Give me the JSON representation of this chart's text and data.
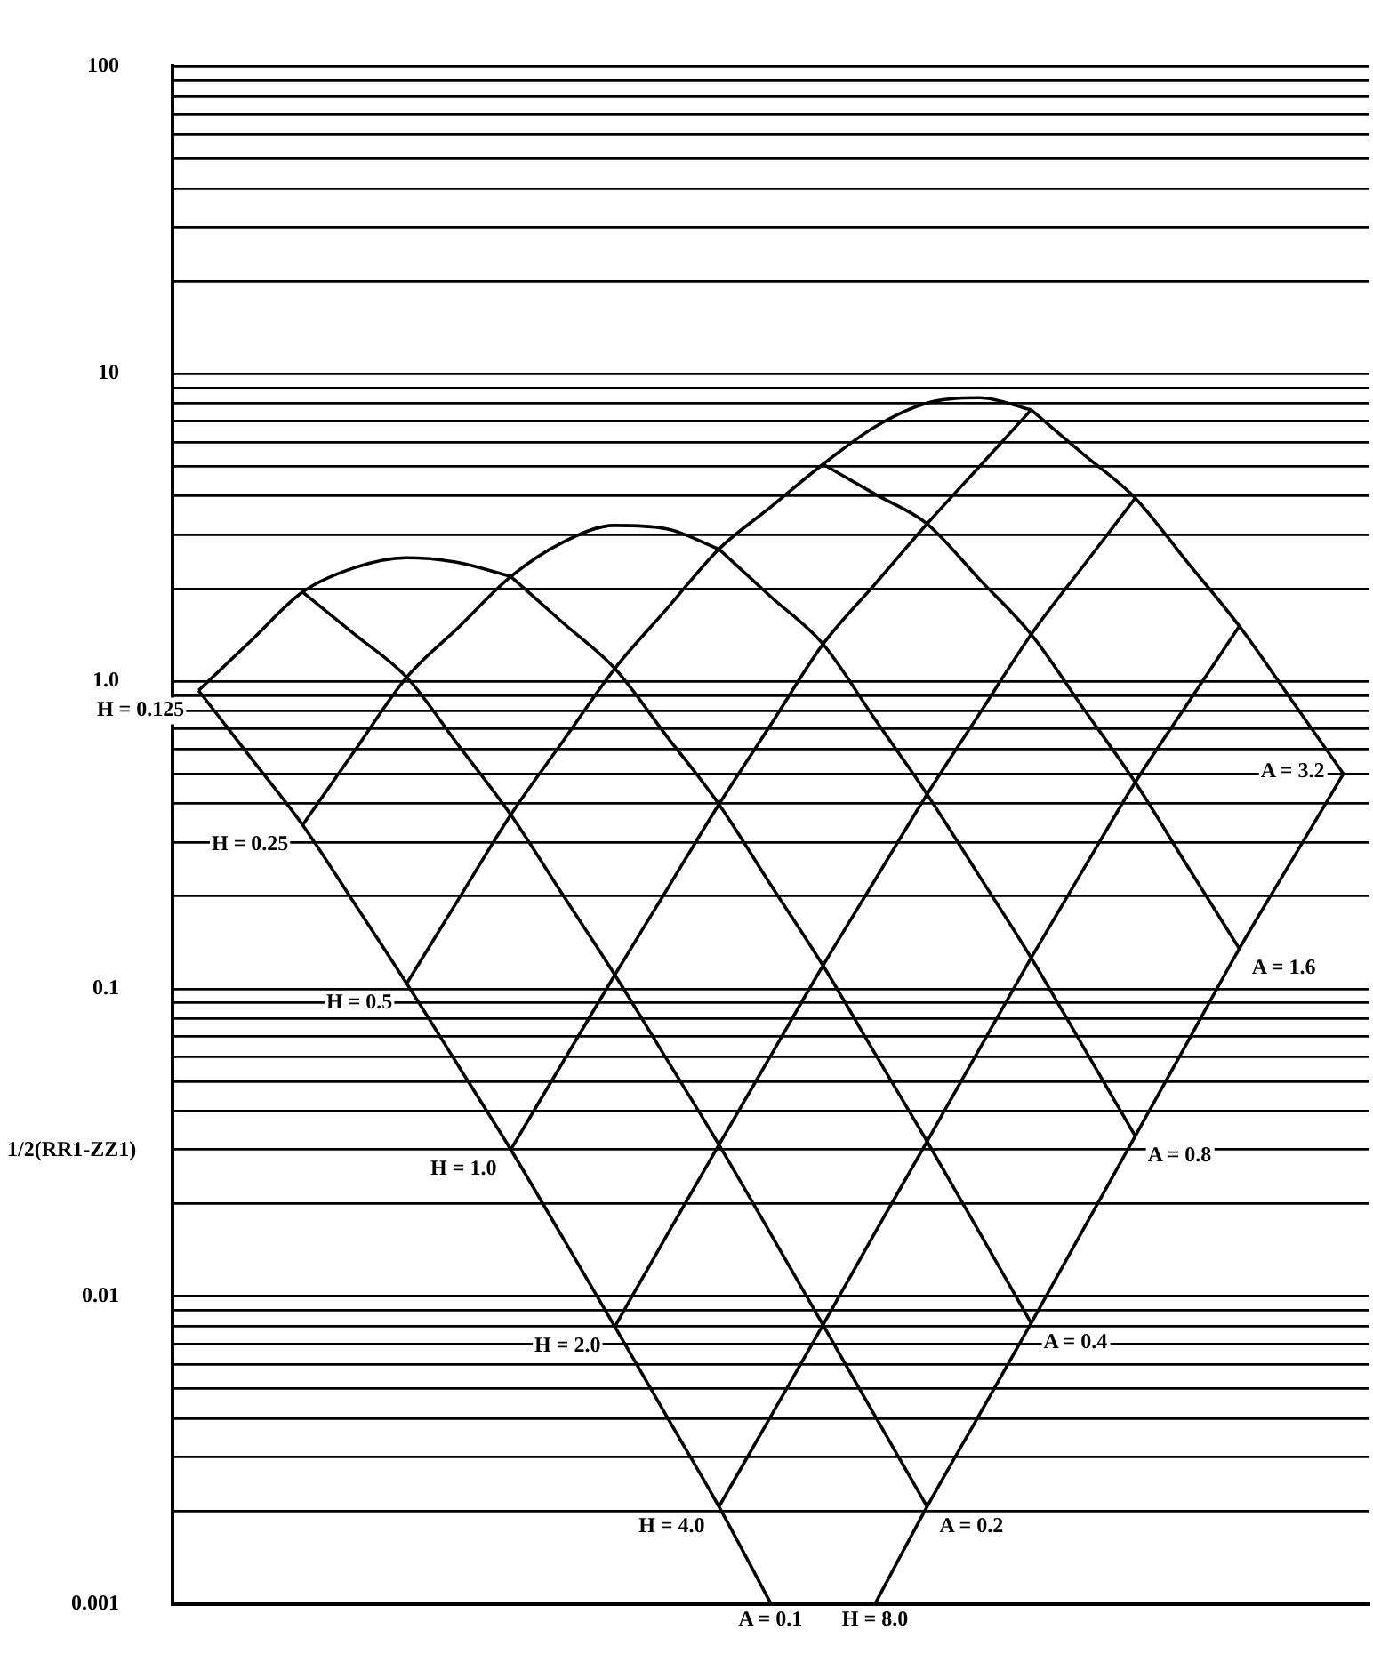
{
  "chart_data": {
    "type": "line",
    "ylabel": "1/2(RR1-ZZ1)",
    "log": "y",
    "ylim": [
      0.001,
      100
    ],
    "yticks": [
      {
        "value": 0.001,
        "label": "0.001"
      },
      {
        "value": 0.002,
        "label": null
      },
      {
        "value": 0.003,
        "label": null
      },
      {
        "value": 0.004,
        "label": null
      },
      {
        "value": 0.005,
        "label": null
      },
      {
        "value": 0.006,
        "label": null
      },
      {
        "value": 0.007,
        "label": null
      },
      {
        "value": 0.008,
        "label": null
      },
      {
        "value": 0.009,
        "label": null
      },
      {
        "value": 0.01,
        "label": "0.01"
      },
      {
        "value": 0.02,
        "label": null
      },
      {
        "value": 0.03,
        "label": null
      },
      {
        "value": 0.04,
        "label": null
      },
      {
        "value": 0.05,
        "label": null
      },
      {
        "value": 0.06,
        "label": null
      },
      {
        "value": 0.07,
        "label": null
      },
      {
        "value": 0.08,
        "label": null
      },
      {
        "value": 0.09,
        "label": null
      },
      {
        "value": 0.1,
        "label": "0.1"
      },
      {
        "value": 0.2,
        "label": null
      },
      {
        "value": 0.3,
        "label": null
      },
      {
        "value": 0.4,
        "label": null
      },
      {
        "value": 0.5,
        "label": null
      },
      {
        "value": 0.6,
        "label": null
      },
      {
        "value": 0.7,
        "label": null
      },
      {
        "value": 0.8,
        "label": null
      },
      {
        "value": 0.9,
        "label": null
      },
      {
        "value": 1,
        "label": "1.0"
      },
      {
        "value": 2,
        "label": null
      },
      {
        "value": 3,
        "label": null
      },
      {
        "value": 4,
        "label": null
      },
      {
        "value": 5,
        "label": null
      },
      {
        "value": 6,
        "label": null
      },
      {
        "value": 7,
        "label": null
      },
      {
        "value": 8,
        "label": null
      },
      {
        "value": 9,
        "label": null
      },
      {
        "value": 10,
        "label": "10"
      },
      {
        "value": 20,
        "label": null
      },
      {
        "value": 30,
        "label": null
      },
      {
        "value": 40,
        "label": null
      },
      {
        "value": 50,
        "label": null
      },
      {
        "value": 60,
        "label": null
      },
      {
        "value": 70,
        "label": null
      },
      {
        "value": 80,
        "label": null
      },
      {
        "value": 90,
        "label": null
      },
      {
        "value": 100,
        "label": "100"
      }
    ],
    "categories": [
      null,
      null,
      null,
      null,
      null,
      null,
      null,
      null,
      null,
      null,
      null,
      null,
      null,
      null,
      null,
      null,
      null,
      null,
      null,
      null,
      null,
      null,
      null
    ],
    "series": [
      {
        "name": "A = 0.1",
        "color": "#000000",
        "values": [
          0.933,
          0.565,
          0.341,
          0.189,
          0.104,
          0.0559,
          0.03,
          0.0155,
          0.00797,
          0.00406,
          0.00207,
          0.001,
          null,
          null,
          null,
          null,
          null,
          null,
          null,
          null,
          null,
          null,
          null
        ]
      },
      {
        "name": "A = 0.2",
        "color": "#000000",
        "values": [
          null,
          null,
          1.95,
          1.42,
          1.03,
          0.617,
          0.368,
          0.202,
          0.111,
          0.0589,
          0.0311,
          0.0159,
          0.00807,
          0.00408,
          0.00207,
          null,
          null,
          null,
          null,
          null,
          null,
          null,
          null
        ]
      },
      {
        "name": "A = 0.4",
        "color": "#000000",
        "values": [
          null,
          null,
          null,
          null,
          null,
          null,
          2.19,
          1.55,
          1.1,
          0.662,
          0.398,
          0.217,
          0.119,
          0.0615,
          0.0319,
          0.0162,
          0.00818,
          null,
          null,
          null,
          null,
          null,
          null
        ]
      },
      {
        "name": "A = 0.8",
        "color": "#000000",
        "values": [
          null,
          null,
          null,
          null,
          null,
          null,
          null,
          null,
          null,
          null,
          2.69,
          1.88,
          1.32,
          0.752,
          0.429,
          0.233,
          0.126,
          0.0648,
          0.0332,
          null,
          null,
          null,
          null
        ]
      },
      {
        "name": "A = 1.6",
        "color": "#000000",
        "values": [
          null,
          null,
          null,
          null,
          null,
          null,
          null,
          null,
          null,
          null,
          null,
          null,
          5.08,
          4.06,
          3.25,
          2.15,
          1.42,
          0.817,
          0.469,
          0.251,
          0.135,
          null,
          null
        ]
      },
      {
        "name": "A = 3.2",
        "color": "#000000",
        "values": [
          null,
          null,
          null,
          null,
          null,
          null,
          null,
          null,
          null,
          null,
          null,
          null,
          null,
          null,
          null,
          null,
          7.63,
          5.48,
          3.94,
          2.44,
          1.51,
          0.87,
          0.5
        ]
      },
      {
        "name": "H = 0.125",
        "color": "#000000",
        "values": [
          0.933,
          1.35,
          1.95,
          2.34,
          2.52,
          2.43,
          2.19,
          null,
          null,
          null,
          null,
          null,
          null,
          null,
          null,
          null,
          null,
          null,
          null,
          null,
          null,
          null,
          null
        ]
      },
      {
        "name": "H = 0.25",
        "color": "#000000",
        "values": [
          null,
          null,
          0.341,
          0.594,
          1.03,
          1.5,
          2.19,
          2.83,
          3.21,
          3.13,
          2.69,
          null,
          null,
          null,
          null,
          null,
          null,
          null,
          null,
          null,
          null,
          null,
          null
        ]
      },
      {
        "name": "H = 0.5",
        "color": "#000000",
        "values": [
          null,
          null,
          null,
          null,
          0.104,
          0.196,
          0.368,
          0.637,
          1.1,
          1.72,
          2.69,
          3.69,
          5.08,
          6.72,
          8.03,
          8.35,
          7.63,
          null,
          null,
          null,
          null,
          null,
          null
        ]
      },
      {
        "name": "H = 1.0",
        "color": "#000000",
        "values": [
          null,
          null,
          null,
          null,
          null,
          null,
          0.03,
          0.0577,
          0.111,
          0.21,
          0.398,
          0.724,
          1.32,
          2.07,
          3.25,
          4.98,
          7.63,
          null,
          null,
          null,
          null,
          null,
          null
        ]
      },
      {
        "name": "H = 2.0",
        "color": "#000000",
        "values": [
          null,
          null,
          null,
          null,
          null,
          null,
          null,
          null,
          0.00797,
          0.0158,
          0.0311,
          0.0608,
          0.119,
          0.226,
          0.429,
          0.781,
          1.42,
          2.37,
          3.94,
          null,
          null,
          null,
          null
        ]
      },
      {
        "name": "H = 4.0",
        "color": "#000000",
        "values": [
          null,
          null,
          null,
          null,
          null,
          null,
          null,
          null,
          null,
          null,
          0.00207,
          0.00408,
          0.00807,
          0.0161,
          0.0319,
          0.0635,
          0.126,
          0.244,
          0.469,
          0.843,
          1.51,
          null,
          null
        ]
      },
      {
        "name": "H = 8.0",
        "color": "#000000",
        "values": [
          null,
          null,
          null,
          null,
          null,
          null,
          null,
          null,
          null,
          null,
          null,
          null,
          null,
          0.001,
          0.00207,
          0.00411,
          0.00818,
          0.0165,
          0.0332,
          0.0669,
          0.135,
          0.26,
          0.5
        ]
      }
    ],
    "grid": "y",
    "legend": false,
    "marker": "none",
    "line_style": "solid",
    "tick_labels": "y"
  }
}
